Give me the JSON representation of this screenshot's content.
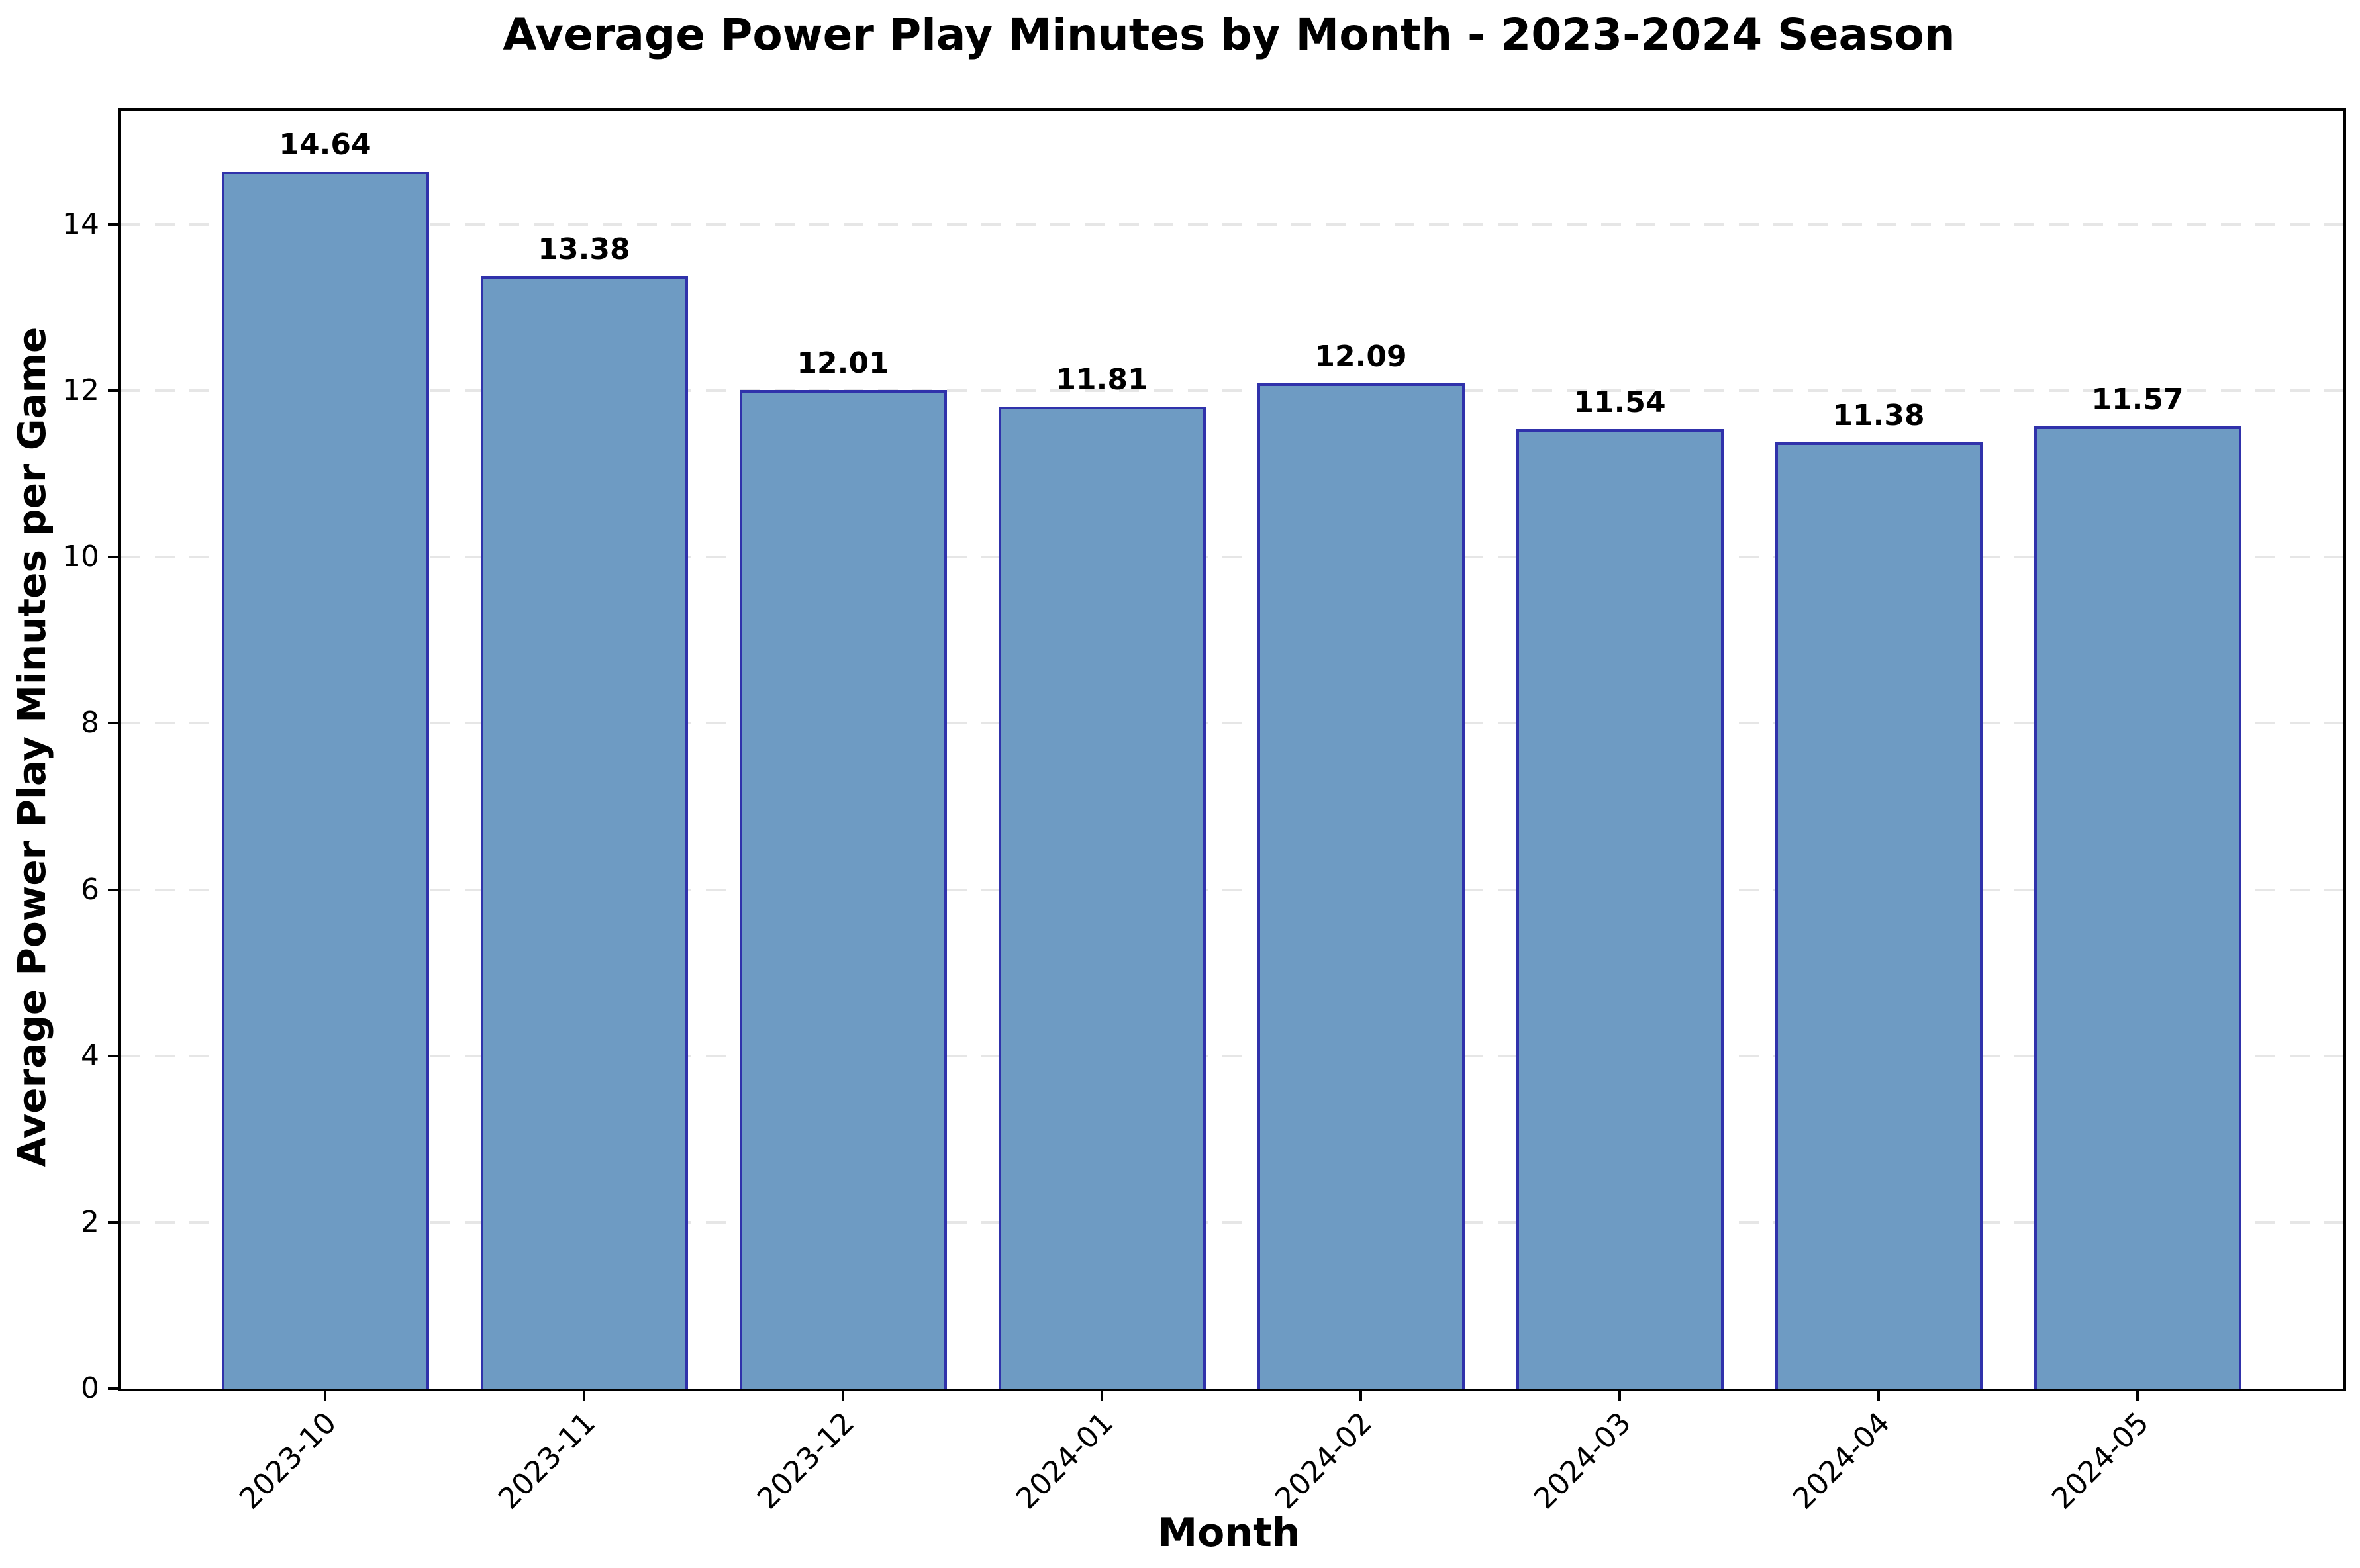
{
  "chart_data": {
    "type": "bar",
    "title": "Average Power Play Minutes by Month - 2023-2024 Season",
    "xlabel": "Month",
    "ylabel": "Average Power Play Minutes per Game",
    "categories": [
      "2023-10",
      "2023-11",
      "2023-12",
      "2024-01",
      "2024-02",
      "2024-03",
      "2024-04",
      "2024-05"
    ],
    "values": [
      14.64,
      13.38,
      12.01,
      11.81,
      12.09,
      11.54,
      11.38,
      11.57
    ],
    "bar_labels": [
      "14.64",
      "13.38",
      "12.01",
      "11.81",
      "12.09",
      "11.54",
      "11.38",
      "11.57"
    ],
    "ylim": [
      0,
      15.37
    ],
    "yticks": [
      0,
      2,
      4,
      6,
      8,
      10,
      12,
      14
    ],
    "ytick_labels": [
      "0",
      "2",
      "4",
      "6",
      "8",
      "10",
      "12",
      "14"
    ],
    "grid": {
      "axis": "y",
      "style": "dashed",
      "color": "#e6e6e6",
      "skip_zero": true
    },
    "legend": "none",
    "colors": {
      "bar_fill": "#6E9BC3",
      "bar_edge": "#3032AB",
      "spine": "#000000",
      "grid": "#e6e6e6",
      "text": "#000000",
      "background": "#ffffff"
    }
  }
}
